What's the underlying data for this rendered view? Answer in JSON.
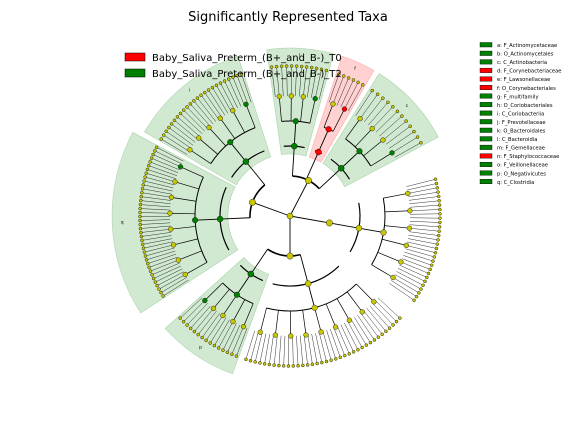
{
  "chart_data": {
    "type": "cladogram",
    "title": "Significantly Represented Taxa",
    "group_legend": [
      {
        "name": "Baby_Saliva_Preterm_(B+_and_B-)_T0",
        "color": "#ff0000"
      },
      {
        "name": "Baby_Saliva_Preterm_(B+_and_B-)_T2",
        "color": "#008000"
      }
    ],
    "taxa": [
      {
        "key": "a",
        "name": "F_Actinomycetaceae",
        "group": 1
      },
      {
        "key": "b",
        "name": "O_Actinomycetales",
        "group": 1
      },
      {
        "key": "c",
        "name": "C_Actinobacteria",
        "group": 1
      },
      {
        "key": "d",
        "name": "F_Corynebacteriaceae",
        "group": 0
      },
      {
        "key": "e",
        "name": "F_Lawsonellaceae",
        "group": 0
      },
      {
        "key": "f",
        "name": "O_Corynebacteriales",
        "group": 0
      },
      {
        "key": "g",
        "name": "F_multifamily",
        "group": 1
      },
      {
        "key": "h",
        "name": "O_Coriobacteriales",
        "group": 1
      },
      {
        "key": "i",
        "name": "C_Coriobacteriia",
        "group": 1
      },
      {
        "key": "j",
        "name": "F_Prevotellaceae",
        "group": 1
      },
      {
        "key": "k",
        "name": "O_Bacteroidales",
        "group": 1
      },
      {
        "key": "l",
        "name": "C_Bacteroidia",
        "group": 1
      },
      {
        "key": "m",
        "name": "F_Gemellaceae",
        "group": 1
      },
      {
        "key": "n",
        "name": "F_Staphylococcaceae",
        "group": 0
      },
      {
        "key": "o",
        "name": "F_Veillonellaceae",
        "group": 1
      },
      {
        "key": "p",
        "name": "O_Negativicutes",
        "group": 1
      },
      {
        "key": "q",
        "name": "C_Clostridia",
        "group": 1
      }
    ],
    "grid": false,
    "legend_position": "top-left (groups), right (taxa)"
  },
  "colors": {
    "group_t0": "#ff0000",
    "group_t2": "#008000",
    "node_default": "#c8c800",
    "shade_t0": "#ff0000",
    "shade_t2": "#008000"
  }
}
